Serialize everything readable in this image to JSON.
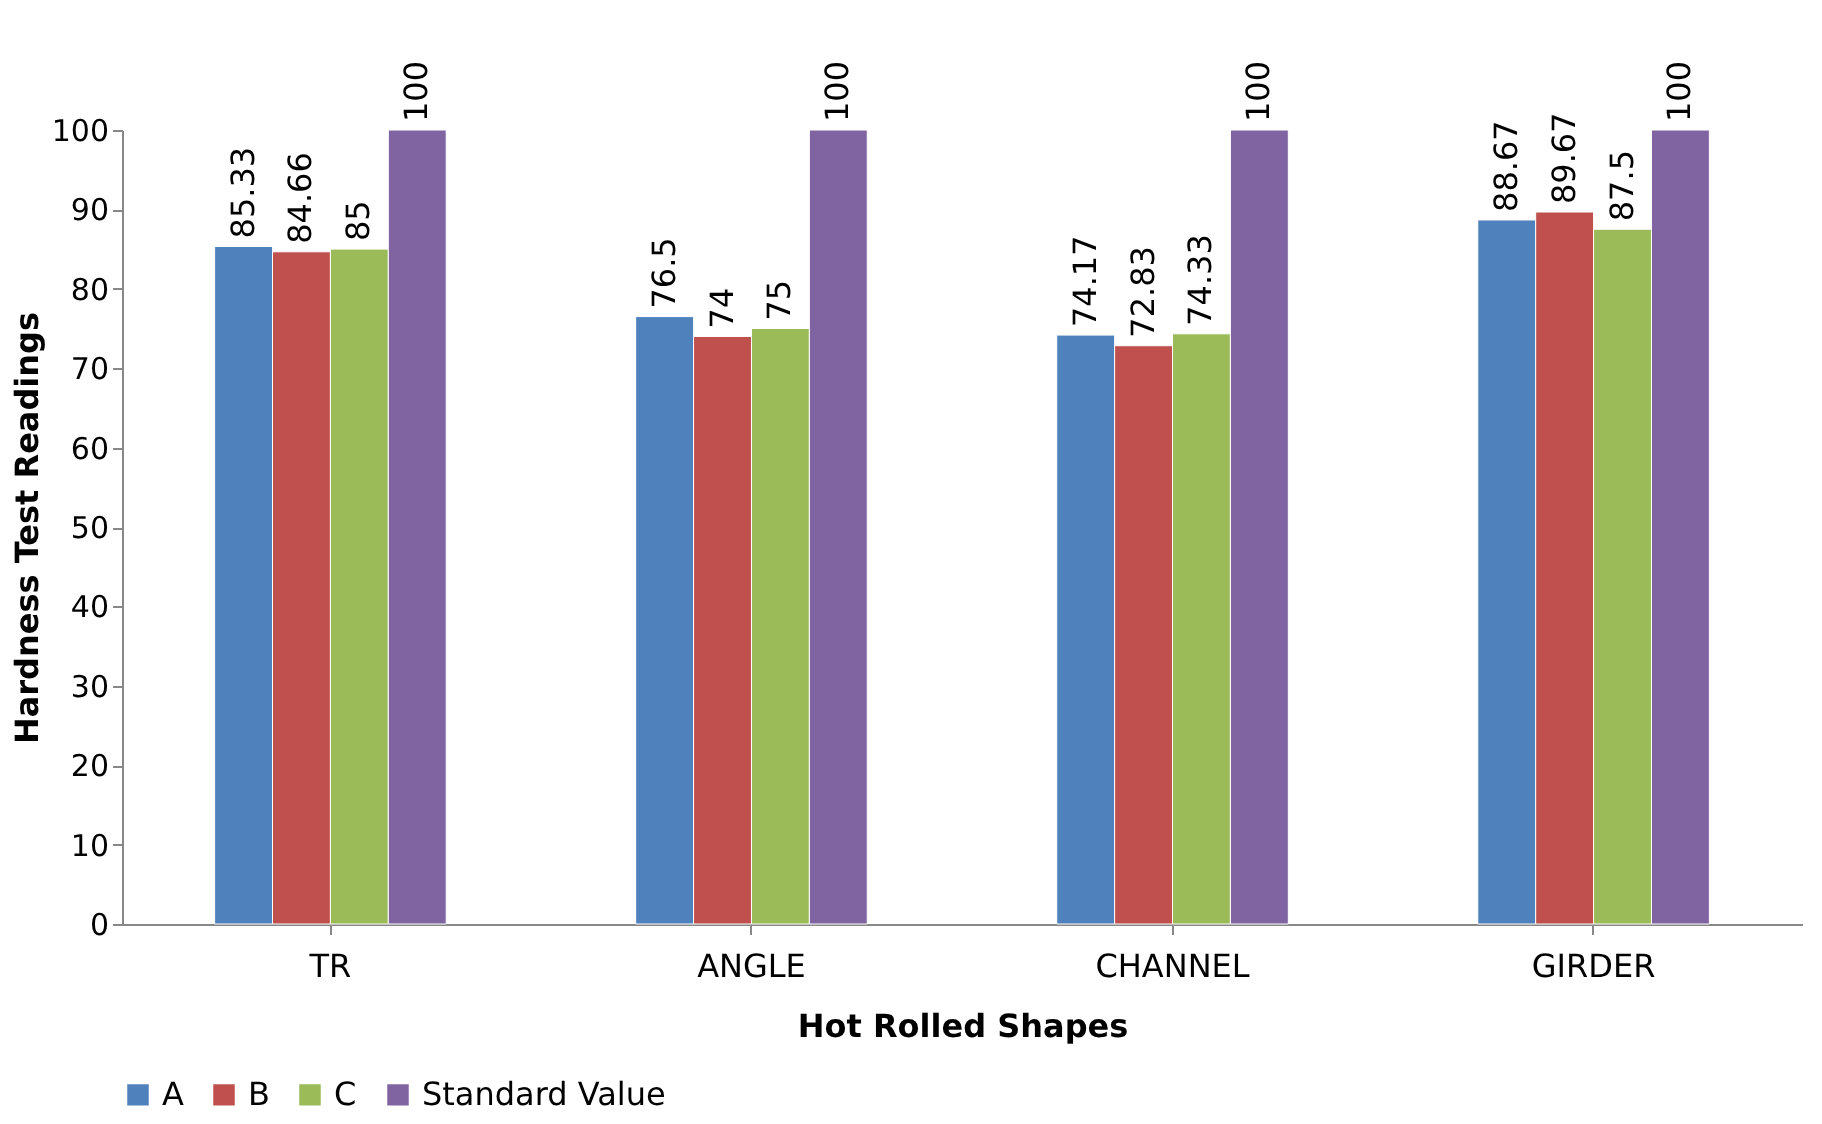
{
  "chart_data": {
    "type": "bar",
    "xlabel": "Hot Rolled Shapes",
    "ylabel": "Hardness Test Readings",
    "categories": [
      "TR",
      "ANGLE",
      "CHANNEL",
      "GIRDER"
    ],
    "series": [
      {
        "name": "A",
        "color": "#4f81bd",
        "values": [
          85.33,
          76.5,
          74.17,
          88.67
        ]
      },
      {
        "name": "B",
        "color": "#c0504d",
        "values": [
          84.66,
          74,
          72.83,
          89.67
        ]
      },
      {
        "name": "C",
        "color": "#9bbb59",
        "values": [
          85,
          75,
          74.33,
          87.5
        ]
      },
      {
        "name": "Standard Value",
        "color": "#8064a2",
        "values": [
          100,
          100,
          100,
          100
        ]
      }
    ],
    "ylim": [
      0,
      100
    ],
    "yticks": [
      0,
      10,
      20,
      30,
      40,
      50,
      60,
      70,
      80,
      90,
      100
    ],
    "data_labels": true,
    "legend": "bottom",
    "grid": false
  }
}
